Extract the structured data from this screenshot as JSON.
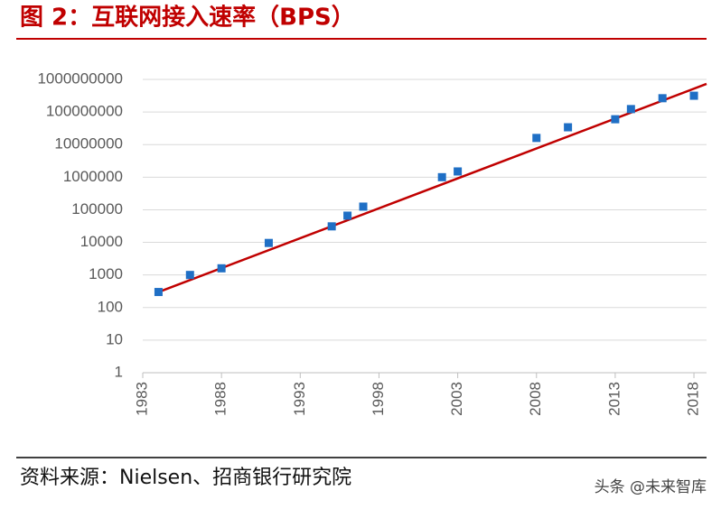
{
  "title": "图 2：互联网接入速率（BPS）",
  "source": "资料来源：Nielsen、招商银行研究院",
  "watermark": "头条 @未来智库",
  "chart_data": {
    "type": "scatter",
    "log_y": true,
    "grid": true,
    "color": "#1f6fc5",
    "x": [
      1984,
      1986,
      1988,
      1991,
      1995,
      1996,
      1997,
      2002,
      2003,
      2008,
      2010,
      2013,
      2014,
      2016,
      2018
    ],
    "values": [
      300,
      1000,
      1600,
      9600,
      31000,
      66000,
      125000,
      1000000,
      1500000,
      16000000,
      34000000,
      60000000,
      123000000,
      265000000,
      316000000
    ],
    "trendline": {
      "x": [
        1983.8,
        2018.8
      ],
      "values": [
        275,
        730000000
      ],
      "color": "#c00000"
    },
    "xlim": [
      1983,
      2018.8
    ],
    "ylim": [
      1,
      1000000000
    ],
    "xticks": [
      1983,
      1988,
      1993,
      1998,
      2003,
      2008,
      2013,
      2018
    ],
    "yticks": [
      1,
      10,
      100,
      1000,
      10000,
      100000,
      1000000,
      10000000,
      100000000,
      1000000000
    ]
  }
}
